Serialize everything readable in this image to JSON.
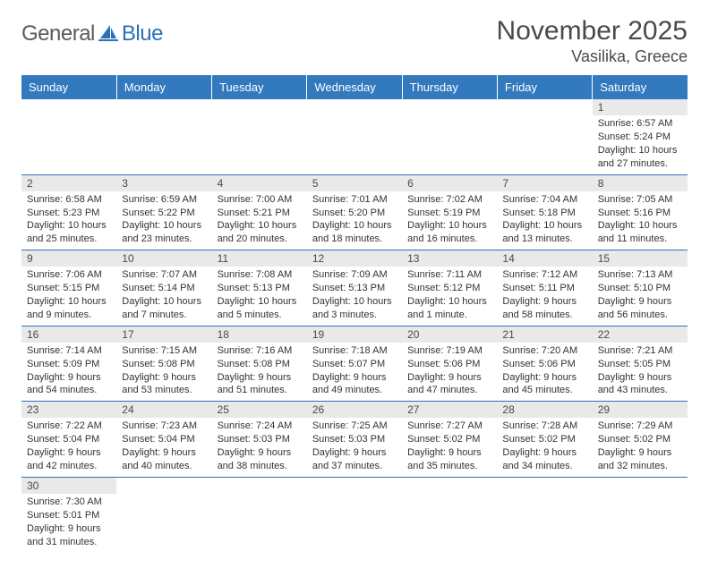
{
  "logo": {
    "general": "General",
    "blue": "Blue"
  },
  "title": "November 2025",
  "location": "Vasilika, Greece",
  "colors": {
    "header_bg": "#3279bd",
    "header_text": "#ffffff",
    "daynum_bg": "#e9e9e9",
    "border": "#2a71b8",
    "text": "#333333",
    "logo_gray": "#5a5a5a",
    "logo_blue": "#2a71b8"
  },
  "weekdays": [
    "Sunday",
    "Monday",
    "Tuesday",
    "Wednesday",
    "Thursday",
    "Friday",
    "Saturday"
  ],
  "weeks": [
    [
      null,
      null,
      null,
      null,
      null,
      null,
      {
        "n": "1",
        "sr": "Sunrise: 6:57 AM",
        "ss": "Sunset: 5:24 PM",
        "d1": "Daylight: 10 hours",
        "d2": "and 27 minutes."
      }
    ],
    [
      {
        "n": "2",
        "sr": "Sunrise: 6:58 AM",
        "ss": "Sunset: 5:23 PM",
        "d1": "Daylight: 10 hours",
        "d2": "and 25 minutes."
      },
      {
        "n": "3",
        "sr": "Sunrise: 6:59 AM",
        "ss": "Sunset: 5:22 PM",
        "d1": "Daylight: 10 hours",
        "d2": "and 23 minutes."
      },
      {
        "n": "4",
        "sr": "Sunrise: 7:00 AM",
        "ss": "Sunset: 5:21 PM",
        "d1": "Daylight: 10 hours",
        "d2": "and 20 minutes."
      },
      {
        "n": "5",
        "sr": "Sunrise: 7:01 AM",
        "ss": "Sunset: 5:20 PM",
        "d1": "Daylight: 10 hours",
        "d2": "and 18 minutes."
      },
      {
        "n": "6",
        "sr": "Sunrise: 7:02 AM",
        "ss": "Sunset: 5:19 PM",
        "d1": "Daylight: 10 hours",
        "d2": "and 16 minutes."
      },
      {
        "n": "7",
        "sr": "Sunrise: 7:04 AM",
        "ss": "Sunset: 5:18 PM",
        "d1": "Daylight: 10 hours",
        "d2": "and 13 minutes."
      },
      {
        "n": "8",
        "sr": "Sunrise: 7:05 AM",
        "ss": "Sunset: 5:16 PM",
        "d1": "Daylight: 10 hours",
        "d2": "and 11 minutes."
      }
    ],
    [
      {
        "n": "9",
        "sr": "Sunrise: 7:06 AM",
        "ss": "Sunset: 5:15 PM",
        "d1": "Daylight: 10 hours",
        "d2": "and 9 minutes."
      },
      {
        "n": "10",
        "sr": "Sunrise: 7:07 AM",
        "ss": "Sunset: 5:14 PM",
        "d1": "Daylight: 10 hours",
        "d2": "and 7 minutes."
      },
      {
        "n": "11",
        "sr": "Sunrise: 7:08 AM",
        "ss": "Sunset: 5:13 PM",
        "d1": "Daylight: 10 hours",
        "d2": "and 5 minutes."
      },
      {
        "n": "12",
        "sr": "Sunrise: 7:09 AM",
        "ss": "Sunset: 5:13 PM",
        "d1": "Daylight: 10 hours",
        "d2": "and 3 minutes."
      },
      {
        "n": "13",
        "sr": "Sunrise: 7:11 AM",
        "ss": "Sunset: 5:12 PM",
        "d1": "Daylight: 10 hours",
        "d2": "and 1 minute."
      },
      {
        "n": "14",
        "sr": "Sunrise: 7:12 AM",
        "ss": "Sunset: 5:11 PM",
        "d1": "Daylight: 9 hours",
        "d2": "and 58 minutes."
      },
      {
        "n": "15",
        "sr": "Sunrise: 7:13 AM",
        "ss": "Sunset: 5:10 PM",
        "d1": "Daylight: 9 hours",
        "d2": "and 56 minutes."
      }
    ],
    [
      {
        "n": "16",
        "sr": "Sunrise: 7:14 AM",
        "ss": "Sunset: 5:09 PM",
        "d1": "Daylight: 9 hours",
        "d2": "and 54 minutes."
      },
      {
        "n": "17",
        "sr": "Sunrise: 7:15 AM",
        "ss": "Sunset: 5:08 PM",
        "d1": "Daylight: 9 hours",
        "d2": "and 53 minutes."
      },
      {
        "n": "18",
        "sr": "Sunrise: 7:16 AM",
        "ss": "Sunset: 5:08 PM",
        "d1": "Daylight: 9 hours",
        "d2": "and 51 minutes."
      },
      {
        "n": "19",
        "sr": "Sunrise: 7:18 AM",
        "ss": "Sunset: 5:07 PM",
        "d1": "Daylight: 9 hours",
        "d2": "and 49 minutes."
      },
      {
        "n": "20",
        "sr": "Sunrise: 7:19 AM",
        "ss": "Sunset: 5:06 PM",
        "d1": "Daylight: 9 hours",
        "d2": "and 47 minutes."
      },
      {
        "n": "21",
        "sr": "Sunrise: 7:20 AM",
        "ss": "Sunset: 5:06 PM",
        "d1": "Daylight: 9 hours",
        "d2": "and 45 minutes."
      },
      {
        "n": "22",
        "sr": "Sunrise: 7:21 AM",
        "ss": "Sunset: 5:05 PM",
        "d1": "Daylight: 9 hours",
        "d2": "and 43 minutes."
      }
    ],
    [
      {
        "n": "23",
        "sr": "Sunrise: 7:22 AM",
        "ss": "Sunset: 5:04 PM",
        "d1": "Daylight: 9 hours",
        "d2": "and 42 minutes."
      },
      {
        "n": "24",
        "sr": "Sunrise: 7:23 AM",
        "ss": "Sunset: 5:04 PM",
        "d1": "Daylight: 9 hours",
        "d2": "and 40 minutes."
      },
      {
        "n": "25",
        "sr": "Sunrise: 7:24 AM",
        "ss": "Sunset: 5:03 PM",
        "d1": "Daylight: 9 hours",
        "d2": "and 38 minutes."
      },
      {
        "n": "26",
        "sr": "Sunrise: 7:25 AM",
        "ss": "Sunset: 5:03 PM",
        "d1": "Daylight: 9 hours",
        "d2": "and 37 minutes."
      },
      {
        "n": "27",
        "sr": "Sunrise: 7:27 AM",
        "ss": "Sunset: 5:02 PM",
        "d1": "Daylight: 9 hours",
        "d2": "and 35 minutes."
      },
      {
        "n": "28",
        "sr": "Sunrise: 7:28 AM",
        "ss": "Sunset: 5:02 PM",
        "d1": "Daylight: 9 hours",
        "d2": "and 34 minutes."
      },
      {
        "n": "29",
        "sr": "Sunrise: 7:29 AM",
        "ss": "Sunset: 5:02 PM",
        "d1": "Daylight: 9 hours",
        "d2": "and 32 minutes."
      }
    ],
    [
      {
        "n": "30",
        "sr": "Sunrise: 7:30 AM",
        "ss": "Sunset: 5:01 PM",
        "d1": "Daylight: 9 hours",
        "d2": "and 31 minutes."
      },
      null,
      null,
      null,
      null,
      null,
      null
    ]
  ]
}
